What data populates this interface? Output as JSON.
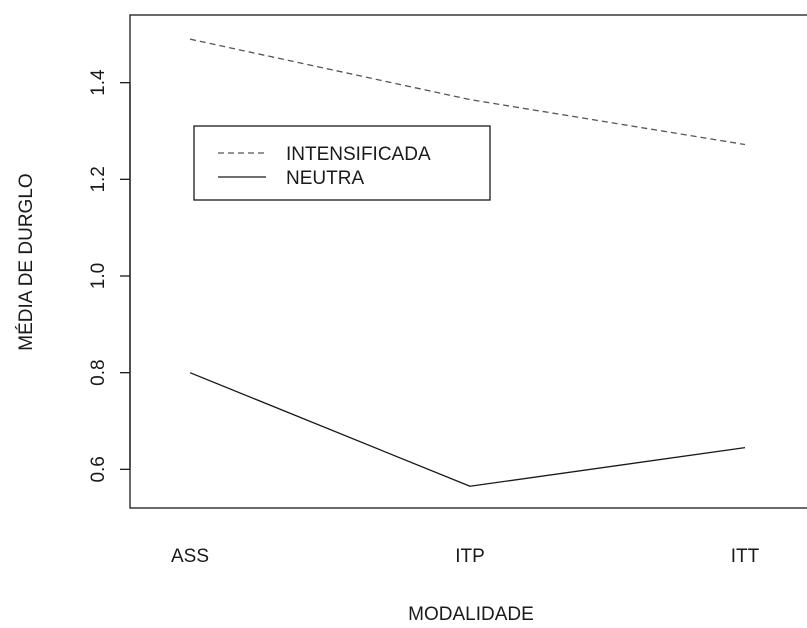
{
  "chart_data": {
    "type": "line",
    "title": "",
    "xlabel": "MODALIDADE",
    "ylabel": "MÉDIA DE DURGLO",
    "categories": [
      "ASS",
      "ITP",
      "ITT"
    ],
    "ylim": [
      0.52,
      1.54
    ],
    "yticks": [
      "0.6",
      "0.8",
      "1.0",
      "1.2",
      "1.4"
    ],
    "grid": false,
    "legend_position": "upper-left",
    "series": [
      {
        "name": "INTENSIFICADA",
        "values": [
          1.49,
          1.365,
          1.272
        ],
        "line_style": "dashed",
        "color": "#555555"
      },
      {
        "name": "NEUTRA",
        "values": [
          0.8,
          0.565,
          0.645
        ],
        "line_style": "solid",
        "color": "#1a1a1a"
      }
    ]
  }
}
